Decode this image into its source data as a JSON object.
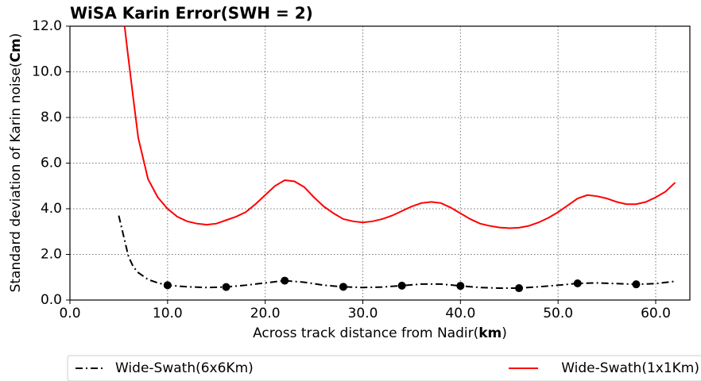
{
  "chart_data": {
    "type": "line",
    "title": "WiSA Karin Error(SWH = 2)",
    "x_label_parts": [
      "Across track distance from Nadir(",
      "km",
      ")"
    ],
    "y_label_parts": [
      "Standard deviation of Karin noise(",
      "Cm",
      ")"
    ],
    "xlim": [
      0,
      63.5
    ],
    "ylim": [
      0,
      12
    ],
    "xticks": [
      {
        "value": 0,
        "label": "0.0"
      },
      {
        "value": 10,
        "label": "10.0"
      },
      {
        "value": 20,
        "label": "20.0"
      },
      {
        "value": 30,
        "label": "30.0"
      },
      {
        "value": 40,
        "label": "40.0"
      },
      {
        "value": 50,
        "label": "50.0"
      },
      {
        "value": 60,
        "label": "60.0"
      }
    ],
    "yticks": [
      {
        "value": 0,
        "label": "0.0"
      },
      {
        "value": 2,
        "label": "2.0"
      },
      {
        "value": 4,
        "label": "4.0"
      },
      {
        "value": 6,
        "label": "6.0"
      },
      {
        "value": 8,
        "label": "8.0"
      },
      {
        "value": 10,
        "label": "10.0"
      },
      {
        "value": 12,
        "label": "12.0"
      }
    ],
    "grid": true,
    "legend": "bottom",
    "series": [
      {
        "name": "Wide-Swath(6x6Km)",
        "color": "#000000",
        "dash": "dashdot",
        "marker": "o",
        "markevery": [
          7,
          3
        ],
        "x": [
          5,
          5.5,
          6,
          6.5,
          7,
          8,
          9,
          10,
          12,
          14,
          16,
          18,
          20,
          22,
          24,
          26,
          28,
          30,
          32,
          34,
          36,
          38,
          40,
          42,
          44,
          46,
          48,
          50,
          52,
          54,
          56,
          58,
          60,
          62
        ],
        "values": [
          3.7,
          2.8,
          1.9,
          1.45,
          1.2,
          0.9,
          0.75,
          0.65,
          0.58,
          0.55,
          0.57,
          0.65,
          0.75,
          0.85,
          0.78,
          0.65,
          0.58,
          0.55,
          0.57,
          0.63,
          0.7,
          0.7,
          0.62,
          0.55,
          0.52,
          0.52,
          0.58,
          0.65,
          0.73,
          0.75,
          0.72,
          0.69,
          0.72,
          0.82
        ]
      },
      {
        "name": "Wide-Swath(1x1Km)",
        "color": "#ff0000",
        "dash": "solid",
        "x": [
          5.6,
          5.9,
          6.5,
          7,
          8,
          9,
          10,
          11,
          12,
          13,
          14,
          15,
          16,
          17,
          18,
          19,
          20,
          21,
          22,
          23,
          24,
          25,
          26,
          27,
          28,
          29,
          30,
          31,
          32,
          33,
          34,
          35,
          36,
          37,
          38,
          39,
          40,
          41,
          42,
          43,
          44,
          45,
          46,
          47,
          48,
          49,
          50,
          51,
          52,
          53,
          54,
          55,
          56,
          57,
          58,
          59,
          60,
          61,
          62
        ],
        "values": [
          12.0,
          10.9,
          8.8,
          7.1,
          5.3,
          4.5,
          4.0,
          3.65,
          3.45,
          3.35,
          3.3,
          3.35,
          3.5,
          3.65,
          3.85,
          4.2,
          4.6,
          5.0,
          5.25,
          5.2,
          4.95,
          4.5,
          4.1,
          3.8,
          3.55,
          3.45,
          3.4,
          3.45,
          3.55,
          3.7,
          3.9,
          4.1,
          4.25,
          4.3,
          4.25,
          4.05,
          3.8,
          3.55,
          3.35,
          3.25,
          3.18,
          3.15,
          3.17,
          3.25,
          3.4,
          3.6,
          3.85,
          4.15,
          4.45,
          4.6,
          4.55,
          4.45,
          4.3,
          4.2,
          4.2,
          4.3,
          4.5,
          4.75,
          5.15
        ]
      }
    ]
  }
}
